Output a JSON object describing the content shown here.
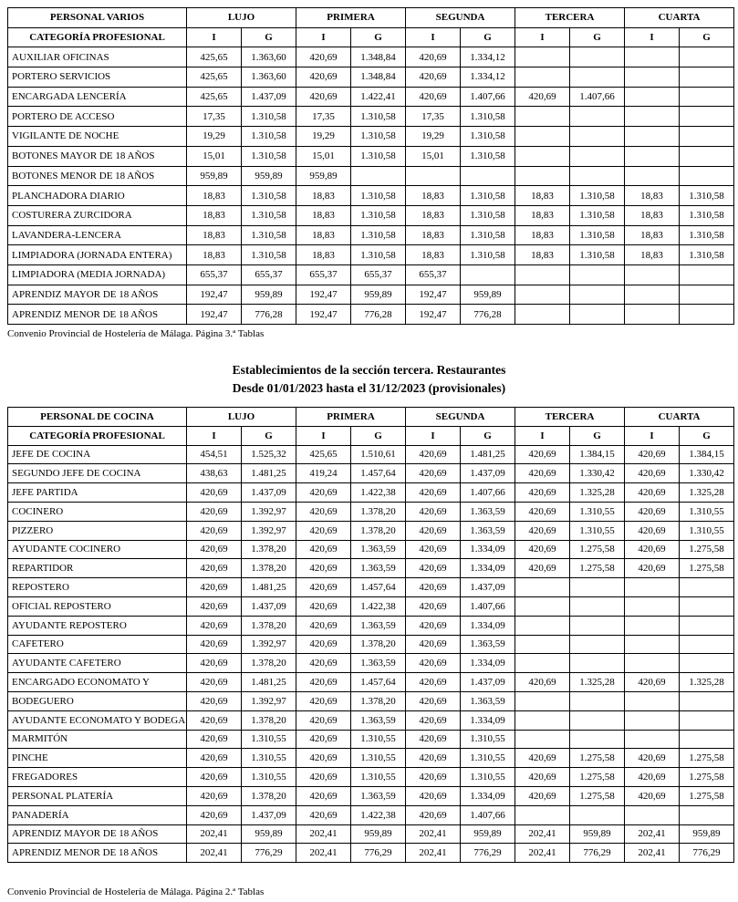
{
  "table1": {
    "group_label": "PERSONAL VARIOS",
    "groups": [
      "LUJO",
      "PRIMERA",
      "SEGUNDA",
      "TERCERA",
      "CUARTA"
    ],
    "sub_label": "CATEGORÍA PROFESIONAL",
    "subheaders": [
      "I",
      "G",
      "I",
      "G",
      "I",
      "G",
      "I",
      "G",
      "I",
      "G"
    ],
    "rows": [
      [
        "AUXILIAR OFICINAS",
        "425,65",
        "1.363,60",
        "420,69",
        "1.348,84",
        "420,69",
        "1.334,12"
      ],
      [
        "PORTERO SERVICIOS",
        "425,65",
        "1.363,60",
        "420,69",
        "1.348,84",
        "420,69",
        "1.334,12"
      ],
      [
        "ENCARGADA LENCERÍA",
        "425,65",
        "1.437,09",
        "420,69",
        "1.422,41",
        "420,69",
        "1.407,66",
        "420,69",
        "1.407,66"
      ],
      [
        "PORTERO DE ACCESO",
        "17,35",
        "1.310,58",
        "17,35",
        "1.310,58",
        "17,35",
        "1.310,58"
      ],
      [
        "VIGILANTE DE NOCHE",
        "19,29",
        "1.310,58",
        "19,29",
        "1.310,58",
        "19,29",
        "1.310,58"
      ],
      [
        "BOTONES MAYOR DE 18 AÑOS",
        "15,01",
        "1.310,58",
        "15,01",
        "1.310,58",
        "15,01",
        "1.310,58"
      ],
      [
        "BOTONES MENOR DE 18 AÑOS",
        "959,89",
        "959,89",
        "959,89"
      ],
      [
        "PLANCHADORA DIARIO",
        "18,83",
        "1.310,58",
        "18,83",
        "1.310,58",
        "18,83",
        "1.310,58",
        "18,83",
        "1.310,58",
        "18,83",
        "1.310,58"
      ],
      [
        "COSTURERA ZURCIDORA",
        "18,83",
        "1.310,58",
        "18,83",
        "1.310,58",
        "18,83",
        "1.310,58",
        "18,83",
        "1.310,58",
        "18,83",
        "1.310,58"
      ],
      [
        "LAVANDERA-LENCERA",
        "18,83",
        "1.310,58",
        "18,83",
        "1.310,58",
        "18,83",
        "1.310,58",
        "18,83",
        "1.310,58",
        "18,83",
        "1.310,58"
      ],
      [
        "LIMPIADORA (JORNADA ENTERA)",
        "18,83",
        "1.310,58",
        "18,83",
        "1.310,58",
        "18,83",
        "1.310,58",
        "18,83",
        "1.310,58",
        "18,83",
        "1.310,58"
      ],
      [
        "LIMPIADORA (MEDIA JORNADA)",
        "655,37",
        "655,37",
        "655,37",
        "655,37",
        "655,37"
      ],
      [
        "APRENDIZ MAYOR DE 18 AÑOS",
        "192,47",
        "959,89",
        "192,47",
        "959,89",
        "192,47",
        "959,89"
      ],
      [
        "APRENDIZ MENOR DE 18 AÑOS",
        "192,47",
        "776,28",
        "192,47",
        "776,28",
        "192,47",
        "776,28"
      ]
    ],
    "footer": "Convenio Provincial de Hostelería de Málaga. Página 3.ª Tablas"
  },
  "section": {
    "title": "Establecimientos de la sección tercera. Restaurantes",
    "subtitle": "Desde 01/01/2023 hasta el 31/12/2023 (provisionales)"
  },
  "table2": {
    "group_label": "PERSONAL DE COCINA",
    "groups": [
      "LUJO",
      "PRIMERA",
      "SEGUNDA",
      "TERCERA",
      "CUARTA"
    ],
    "sub_label": "CATEGORÍA PROFESIONAL",
    "subheaders": [
      "I",
      "G",
      "I",
      "G",
      "I",
      "G",
      "I",
      "G",
      "I",
      "G"
    ],
    "rows": [
      [
        "JEFE DE COCINA",
        "454,51",
        "1.525,32",
        "425,65",
        "1.510,61",
        "420,69",
        "1.481,25",
        "420,69",
        "1.384,15",
        "420,69",
        "1.384,15"
      ],
      [
        "SEGUNDO JEFE DE COCINA",
        "438,63",
        "1.481,25",
        "419,24",
        "1.457,64",
        "420,69",
        "1.437,09",
        "420,69",
        "1.330,42",
        "420,69",
        "1.330,42"
      ],
      [
        "JEFE PARTIDA",
        "420,69",
        "1.437,09",
        "420,69",
        "1.422,38",
        "420,69",
        "1.407,66",
        "420,69",
        "1.325,28",
        "420,69",
        "1.325,28"
      ],
      [
        "COCINERO",
        "420,69",
        "1.392,97",
        "420,69",
        "1.378,20",
        "420,69",
        "1.363,59",
        "420,69",
        "1.310,55",
        "420,69",
        "1.310,55"
      ],
      [
        "PIZZERO",
        "420,69",
        "1.392,97",
        "420,69",
        "1.378,20",
        "420,69",
        "1.363,59",
        "420,69",
        "1.310,55",
        "420,69",
        "1.310,55"
      ],
      [
        "AYUDANTE COCINERO",
        "420,69",
        "1.378,20",
        "420,69",
        "1.363,59",
        "420,69",
        "1.334,09",
        "420,69",
        "1.275,58",
        "420,69",
        "1.275,58"
      ],
      [
        "REPARTIDOR",
        "420,69",
        "1.378,20",
        "420,69",
        "1.363,59",
        "420,69",
        "1.334,09",
        "420,69",
        "1.275,58",
        "420,69",
        "1.275,58"
      ],
      [
        "REPOSTERO",
        "420,69",
        "1.481,25",
        "420,69",
        "1.457,64",
        "420,69",
        "1.437,09"
      ],
      [
        "OFICIAL REPOSTERO",
        "420,69",
        "1.437,09",
        "420,69",
        "1.422,38",
        "420,69",
        "1.407,66"
      ],
      [
        "AYUDANTE REPOSTERO",
        "420,69",
        "1.378,20",
        "420,69",
        "1.363,59",
        "420,69",
        "1.334,09"
      ],
      [
        "CAFETERO",
        "420,69",
        "1.392,97",
        "420,69",
        "1.378,20",
        "420,69",
        "1.363,59"
      ],
      [
        "AYUDANTE CAFETERO",
        "420,69",
        "1.378,20",
        "420,69",
        "1.363,59",
        "420,69",
        "1.334,09"
      ],
      [
        "ENCARGADO ECONOMATO Y",
        "420,69",
        "1.481,25",
        "420,69",
        "1.457,64",
        "420,69",
        "1.437,09",
        "420,69",
        "1.325,28",
        "420,69",
        "1.325,28"
      ],
      [
        "BODEGUERO",
        "420,69",
        "1.392,97",
        "420,69",
        "1.378,20",
        "420,69",
        "1.363,59"
      ],
      [
        "AYUDANTE ECONOMATO Y BODEGA",
        "420,69",
        "1.378,20",
        "420,69",
        "1.363,59",
        "420,69",
        "1.334,09"
      ],
      [
        "MARMITÓN",
        "420,69",
        "1.310,55",
        "420,69",
        "1.310,55",
        "420,69",
        "1.310,55"
      ],
      [
        "PINCHE",
        "420,69",
        "1.310,55",
        "420,69",
        "1.310,55",
        "420,69",
        "1.310,55",
        "420,69",
        "1.275,58",
        "420,69",
        "1.275,58"
      ],
      [
        "FREGADORES",
        "420,69",
        "1.310,55",
        "420,69",
        "1.310,55",
        "420,69",
        "1.310,55",
        "420,69",
        "1.275,58",
        "420,69",
        "1.275,58"
      ],
      [
        "PERSONAL PLATERÍA",
        "420,69",
        "1.378,20",
        "420,69",
        "1.363,59",
        "420,69",
        "1.334,09",
        "420,69",
        "1.275,58",
        "420,69",
        "1.275,58"
      ],
      [
        "PANADERÍA",
        "420,69",
        "1.437,09",
        "420,69",
        "1.422,38",
        "420,69",
        "1.407,66"
      ],
      [
        "APRENDIZ MAYOR DE 18 AÑOS",
        "202,41",
        "959,89",
        "202,41",
        "959,89",
        "202,41",
        "959,89",
        "202,41",
        "959,89",
        "202,41",
        "959,89"
      ],
      [
        "APRENDIZ MENOR DE 18 AÑOS",
        "202,41",
        "776,29",
        "202,41",
        "776,29",
        "202,41",
        "776,29",
        "202,41",
        "776,29",
        "202,41",
        "776,29"
      ]
    ],
    "footer": "Convenio Provincial de Hostelería de Málaga. Página 2.ª Tablas"
  }
}
